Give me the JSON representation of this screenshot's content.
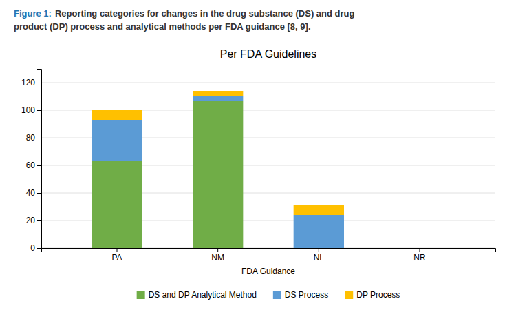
{
  "chart_data": {
    "type": "bar",
    "stacked": true,
    "title": "Per FDA Guidelines",
    "xlabel": "FDA Guidance",
    "annotations": [
      "Figure 1:",
      "Reporting categories for changes in the drug substance (DS) and drug",
      "product (DP) process and analytical methods per FDA guidance [8, 9]."
    ],
    "categories": [
      "PA",
      "NM",
      "NL",
      "NR"
    ],
    "series": [
      {
        "name": "DS and DP Analytical Method",
        "color": "#70ad47",
        "values": [
          63,
          107,
          0,
          0
        ]
      },
      {
        "name": "DS Process",
        "color": "#5b9bd5",
        "values": [
          30,
          3,
          24,
          0
        ]
      },
      {
        "name": "DP Process",
        "color": "#ffc000",
        "values": [
          7,
          4,
          7,
          0
        ]
      }
    ],
    "ylim": [
      0,
      130
    ],
    "yticks": [
      0,
      20,
      40,
      60,
      80,
      100,
      120
    ],
    "grid": true,
    "legend": "bottom"
  }
}
